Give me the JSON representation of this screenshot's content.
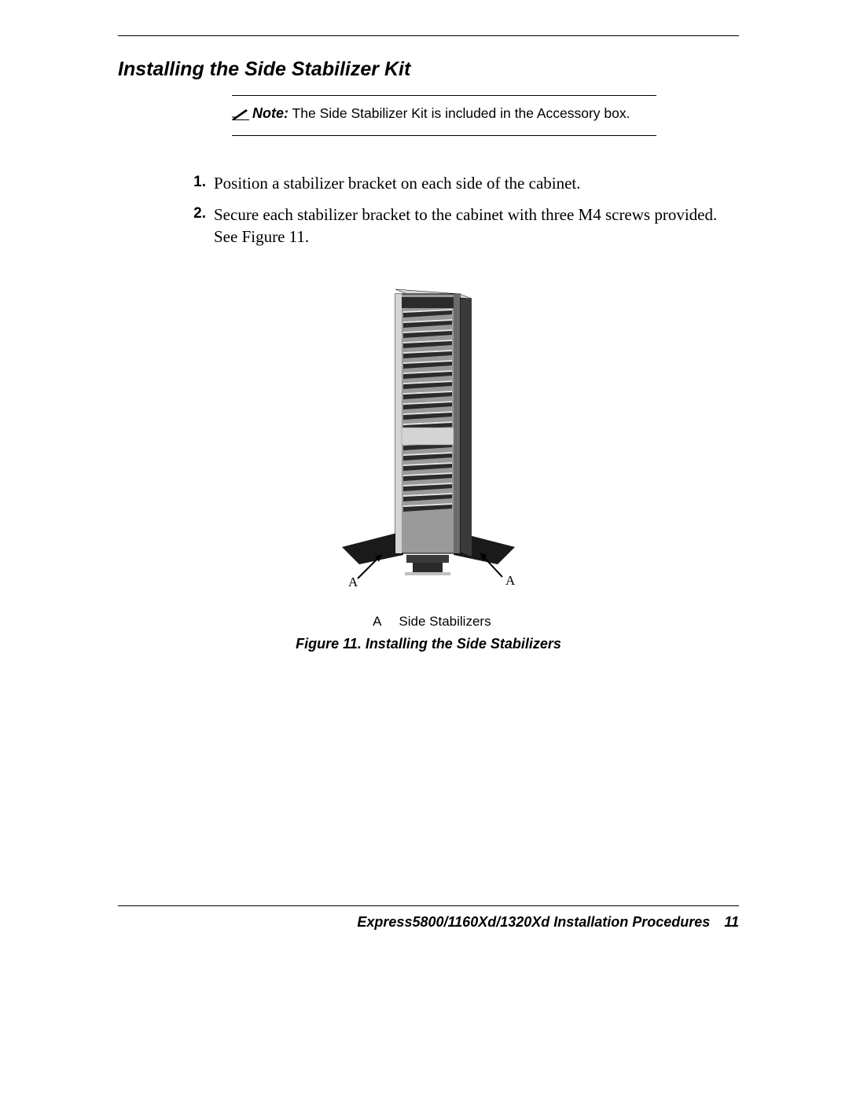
{
  "section": {
    "title": "Installing the Side Stabilizer Kit"
  },
  "note": {
    "label": "Note:",
    "text": "The Side Stabilizer Kit is included in the Accessory box."
  },
  "steps": [
    {
      "num": "1.",
      "text": "Position a stabilizer bracket on each side of the cabinet."
    },
    {
      "num": "2.",
      "text": "Secure each stabilizer bracket to the cabinet with three M4 screws provided. See Figure 11."
    }
  ],
  "figure": {
    "label_left": "A",
    "label_right": "A",
    "legend_key": "A",
    "legend_text": "Side Stabilizers",
    "caption": "Figure 11.  Installing the Side Stabilizers",
    "colors": {
      "cabinet_body": "#9a9a9a",
      "cabinet_light": "#d4d4d4",
      "cabinet_dark": "#3a3a3a",
      "vent_dark": "#2b2b2b",
      "stabilizer": "#1a1a1a",
      "outline": "#000000"
    },
    "vent_count": 20
  },
  "footer": {
    "title": "Express5800/1160Xd/1320Xd Installation Procedures",
    "page": "11"
  }
}
